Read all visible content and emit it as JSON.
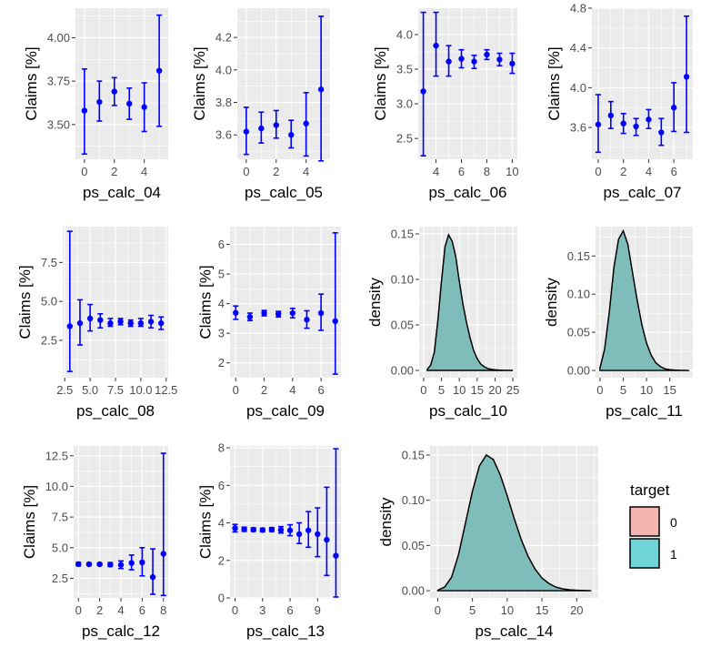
{
  "colors": {
    "panel_bg": "#ebebeb",
    "grid": "#ffffff",
    "point": "#0000ff",
    "density_fill_0": "#f8766d",
    "density_fill_1": "#00bfc4",
    "density_overlap": "#7fbdbb"
  },
  "legend": {
    "title": "target",
    "items": [
      {
        "label": "0",
        "color": "#f4b5b0"
      },
      {
        "label": "1",
        "color": "#70d5d8"
      }
    ]
  },
  "chart_data": [
    {
      "id": "ps_calc_04",
      "type": "scatter",
      "xlabel": "ps_calc_04",
      "ylabel": "Claims [%]",
      "xlim": [
        -0.6,
        5.6
      ],
      "ylim": [
        3.3,
        4.17
      ],
      "xticks": [
        0,
        2,
        4
      ],
      "xtick_labels": [
        "0",
        "2",
        "4"
      ],
      "yticks": [
        3.5,
        3.75,
        4.0
      ],
      "ytick_labels": [
        "3.50",
        "3.75",
        "4.00"
      ],
      "points": [
        {
          "x": 0,
          "y": 3.58,
          "lo": 3.33,
          "hi": 3.82
        },
        {
          "x": 1,
          "y": 3.63,
          "lo": 3.52,
          "hi": 3.75
        },
        {
          "x": 2,
          "y": 3.69,
          "lo": 3.61,
          "hi": 3.77
        },
        {
          "x": 3,
          "y": 3.62,
          "lo": 3.53,
          "hi": 3.71
        },
        {
          "x": 4,
          "y": 3.6,
          "lo": 3.46,
          "hi": 3.74
        },
        {
          "x": 5,
          "y": 3.81,
          "lo": 3.49,
          "hi": 4.13
        }
      ]
    },
    {
      "id": "ps_calc_05",
      "type": "scatter",
      "xlabel": "ps_calc_05",
      "ylabel": "Claims [%]",
      "xlim": [
        -0.6,
        5.6
      ],
      "ylim": [
        3.45,
        4.38
      ],
      "xticks": [
        0,
        2,
        4
      ],
      "xtick_labels": [
        "0",
        "2",
        "4"
      ],
      "yticks": [
        3.6,
        3.8,
        4.0,
        4.2
      ],
      "ytick_labels": [
        "3.6",
        "3.8",
        "4.0",
        "4.2"
      ],
      "points": [
        {
          "x": 0,
          "y": 3.62,
          "lo": 3.48,
          "hi": 3.77
        },
        {
          "x": 1,
          "y": 3.64,
          "lo": 3.55,
          "hi": 3.74
        },
        {
          "x": 2,
          "y": 3.66,
          "lo": 3.58,
          "hi": 3.75
        },
        {
          "x": 3,
          "y": 3.6,
          "lo": 3.52,
          "hi": 3.69
        },
        {
          "x": 4,
          "y": 3.67,
          "lo": 3.47,
          "hi": 3.86
        },
        {
          "x": 5,
          "y": 3.88,
          "lo": 3.44,
          "hi": 4.33
        }
      ]
    },
    {
      "id": "ps_calc_06",
      "type": "scatter",
      "xlabel": "ps_calc_06",
      "ylabel": "Claims [%]",
      "xlim": [
        2.6,
        10.4
      ],
      "ylim": [
        2.2,
        4.38
      ],
      "xticks": [
        4,
        6,
        8,
        10
      ],
      "xtick_labels": [
        "4",
        "6",
        "8",
        "10"
      ],
      "yticks": [
        2.5,
        3.0,
        3.5,
        4.0
      ],
      "ytick_labels": [
        "2.5",
        "3.0",
        "3.5",
        "4.0"
      ],
      "points": [
        {
          "x": 3,
          "y": 3.18,
          "lo": 2.25,
          "hi": 4.32
        },
        {
          "x": 4,
          "y": 3.84,
          "lo": 3.4,
          "hi": 4.32
        },
        {
          "x": 5,
          "y": 3.61,
          "lo": 3.4,
          "hi": 3.84
        },
        {
          "x": 6,
          "y": 3.65,
          "lo": 3.52,
          "hi": 3.78
        },
        {
          "x": 7,
          "y": 3.61,
          "lo": 3.51,
          "hi": 3.7
        },
        {
          "x": 8,
          "y": 3.71,
          "lo": 3.64,
          "hi": 3.78
        },
        {
          "x": 9,
          "y": 3.64,
          "lo": 3.55,
          "hi": 3.73
        },
        {
          "x": 10,
          "y": 3.58,
          "lo": 3.44,
          "hi": 3.73
        }
      ]
    },
    {
      "id": "ps_calc_07",
      "type": "scatter",
      "xlabel": "ps_calc_07",
      "ylabel": "Claims [%]",
      "xlim": [
        -0.5,
        7.5
      ],
      "ylim": [
        3.28,
        4.8
      ],
      "xticks": [
        0,
        2,
        4,
        6
      ],
      "xtick_labels": [
        "0",
        "2",
        "4",
        "6"
      ],
      "yticks": [
        3.6,
        4.0,
        4.4,
        4.8
      ],
      "ytick_labels": [
        "3.6",
        "4.0",
        "4.4",
        "4.8"
      ],
      "points": [
        {
          "x": 0,
          "y": 3.63,
          "lo": 3.35,
          "hi": 3.93
        },
        {
          "x": 1,
          "y": 3.72,
          "lo": 3.59,
          "hi": 3.86
        },
        {
          "x": 2,
          "y": 3.64,
          "lo": 3.54,
          "hi": 3.74
        },
        {
          "x": 3,
          "y": 3.61,
          "lo": 3.52,
          "hi": 3.69
        },
        {
          "x": 4,
          "y": 3.68,
          "lo": 3.59,
          "hi": 3.78
        },
        {
          "x": 5,
          "y": 3.55,
          "lo": 3.42,
          "hi": 3.69
        },
        {
          "x": 6,
          "y": 3.8,
          "lo": 3.56,
          "hi": 4.05
        },
        {
          "x": 7,
          "y": 4.11,
          "lo": 3.55,
          "hi": 4.72
        }
      ]
    },
    {
      "id": "ps_calc_08",
      "type": "scatter",
      "xlabel": "ps_calc_08",
      "ylabel": "Claims [%]",
      "xlim": [
        2.3,
        12.7
      ],
      "ylim": [
        0.1,
        9.8
      ],
      "xticks": [
        2.5,
        5.0,
        7.5,
        10.0,
        12.5
      ],
      "xtick_labels": [
        "2.5",
        "5.0",
        "7.5",
        "10.0",
        "12.5"
      ],
      "yticks": [
        2.5,
        5.0,
        7.5
      ],
      "ytick_labels": [
        "2.5",
        "5.0",
        "7.5"
      ],
      "points": [
        {
          "x": 3,
          "y": 3.4,
          "lo": 0.5,
          "hi": 9.5
        },
        {
          "x": 4,
          "y": 3.6,
          "lo": 2.2,
          "hi": 5.1
        },
        {
          "x": 5,
          "y": 3.9,
          "lo": 3.1,
          "hi": 4.8
        },
        {
          "x": 6,
          "y": 3.8,
          "lo": 3.3,
          "hi": 4.2
        },
        {
          "x": 7,
          "y": 3.6,
          "lo": 3.4,
          "hi": 3.9
        },
        {
          "x": 8,
          "y": 3.7,
          "lo": 3.5,
          "hi": 3.9
        },
        {
          "x": 9,
          "y": 3.6,
          "lo": 3.4,
          "hi": 3.8
        },
        {
          "x": 10,
          "y": 3.6,
          "lo": 3.4,
          "hi": 3.9
        },
        {
          "x": 11,
          "y": 3.7,
          "lo": 3.3,
          "hi": 4.1
        },
        {
          "x": 12,
          "y": 3.6,
          "lo": 3.2,
          "hi": 4.0
        }
      ]
    },
    {
      "id": "ps_calc_09",
      "type": "scatter",
      "xlabel": "ps_calc_09",
      "ylabel": "Claims [%]",
      "xlim": [
        -0.4,
        7.4
      ],
      "ylim": [
        1.5,
        6.6
      ],
      "xticks": [
        0,
        2,
        4,
        6
      ],
      "xtick_labels": [
        "0",
        "2",
        "4",
        "6"
      ],
      "yticks": [
        2,
        3,
        4,
        5,
        6
      ],
      "ytick_labels": [
        "2",
        "3",
        "4",
        "5",
        "6"
      ],
      "points": [
        {
          "x": 0,
          "y": 3.69,
          "lo": 3.47,
          "hi": 3.92
        },
        {
          "x": 1,
          "y": 3.55,
          "lo": 3.43,
          "hi": 3.68
        },
        {
          "x": 2,
          "y": 3.68,
          "lo": 3.59,
          "hi": 3.77
        },
        {
          "x": 3,
          "y": 3.65,
          "lo": 3.55,
          "hi": 3.74
        },
        {
          "x": 4,
          "y": 3.68,
          "lo": 3.52,
          "hi": 3.84
        },
        {
          "x": 5,
          "y": 3.46,
          "lo": 3.17,
          "hi": 3.76
        },
        {
          "x": 6,
          "y": 3.68,
          "lo": 3.1,
          "hi": 4.32
        },
        {
          "x": 7,
          "y": 3.41,
          "lo": 1.62,
          "hi": 6.39
        }
      ]
    },
    {
      "id": "ps_calc_10",
      "type": "area",
      "xlabel": "ps_calc_10",
      "ylabel": "density",
      "xlim": [
        -1.25,
        26.25
      ],
      "ylim": [
        -0.008,
        0.158
      ],
      "xticks": [
        0,
        5,
        10,
        15,
        20,
        25
      ],
      "xtick_labels": [
        "0",
        "5",
        "10",
        "15",
        "20",
        "25"
      ],
      "yticks": [
        0.0,
        0.05,
        0.1,
        0.15
      ],
      "ytick_labels": [
        "0.00",
        "0.05",
        "0.10",
        "0.15"
      ],
      "x": [
        1,
        2,
        3,
        4,
        5,
        6,
        7,
        8,
        9,
        10,
        11,
        12,
        13,
        14,
        15,
        16,
        17,
        18,
        19,
        20,
        21,
        22,
        23,
        24,
        25
      ],
      "y": [
        0.001,
        0.006,
        0.02,
        0.055,
        0.098,
        0.136,
        0.149,
        0.142,
        0.125,
        0.098,
        0.073,
        0.053,
        0.036,
        0.022,
        0.013,
        0.007,
        0.004,
        0.002,
        0.0012,
        0.0007,
        0.0004,
        0.0002,
        0.0001,
        5e-05,
        0.0
      ],
      "series": [
        {
          "name": "0"
        },
        {
          "name": "1"
        }
      ]
    },
    {
      "id": "ps_calc_11",
      "type": "area",
      "xlabel": "ps_calc_11",
      "ylabel": "density",
      "xlim": [
        -0.95,
        19.95
      ],
      "ylim": [
        -0.0095,
        0.1885
      ],
      "xticks": [
        0,
        5,
        10,
        15
      ],
      "xtick_labels": [
        "0",
        "5",
        "10",
        "15"
      ],
      "yticks": [
        0.0,
        0.05,
        0.1,
        0.15
      ],
      "ytick_labels": [
        "0.00",
        "0.05",
        "0.10",
        "0.15"
      ],
      "x": [
        0,
        1,
        2,
        3,
        4,
        5,
        6,
        7,
        8,
        9,
        10,
        11,
        12,
        13,
        14,
        15,
        16,
        17,
        18,
        19
      ],
      "y": [
        0.003,
        0.028,
        0.076,
        0.135,
        0.172,
        0.183,
        0.165,
        0.128,
        0.092,
        0.06,
        0.036,
        0.02,
        0.01,
        0.005,
        0.002,
        0.001,
        0.0005,
        0.0002,
        0.0001,
        0.0
      ],
      "series": [
        {
          "name": "0"
        },
        {
          "name": "1"
        }
      ]
    },
    {
      "id": "ps_calc_12",
      "type": "scatter",
      "xlabel": "ps_calc_12",
      "ylabel": "Claims [%]",
      "xlim": [
        -0.45,
        8.45
      ],
      "ylim": [
        0.9,
        13.3
      ],
      "xticks": [
        0,
        2,
        4,
        6,
        8
      ],
      "xtick_labels": [
        "0",
        "2",
        "4",
        "6",
        "8"
      ],
      "yticks": [
        2.5,
        5.0,
        7.5,
        10.0,
        12.5
      ],
      "ytick_labels": [
        "2.5",
        "5.0",
        "7.5",
        "10.0",
        "12.5"
      ],
      "points": [
        {
          "x": 0,
          "y": 3.66,
          "lo": 3.52,
          "hi": 3.8
        },
        {
          "x": 1,
          "y": 3.65,
          "lo": 3.56,
          "hi": 3.75
        },
        {
          "x": 2,
          "y": 3.65,
          "lo": 3.56,
          "hi": 3.74
        },
        {
          "x": 3,
          "y": 3.62,
          "lo": 3.47,
          "hi": 3.78
        },
        {
          "x": 4,
          "y": 3.6,
          "lo": 3.3,
          "hi": 3.92
        },
        {
          "x": 5,
          "y": 3.75,
          "lo": 3.2,
          "hi": 4.4
        },
        {
          "x": 6,
          "y": 3.8,
          "lo": 2.7,
          "hi": 5.0
        },
        {
          "x": 7,
          "y": 2.6,
          "lo": 1.2,
          "hi": 4.9
        },
        {
          "x": 8,
          "y": 4.5,
          "lo": 1.1,
          "hi": 12.7
        }
      ]
    },
    {
      "id": "ps_calc_13",
      "type": "scatter",
      "xlabel": "ps_calc_13",
      "ylabel": "Claims [%]",
      "xlim": [
        -0.55,
        11.55
      ],
      "ylim": [
        0.0,
        8.1
      ],
      "xticks": [
        0,
        3,
        6,
        9
      ],
      "xtick_labels": [
        "0",
        "3",
        "6",
        "9"
      ],
      "yticks": [
        0,
        2,
        4,
        6,
        8
      ],
      "ytick_labels": [
        "0",
        "2",
        "4",
        "6",
        "8"
      ],
      "points": [
        {
          "x": 0,
          "y": 3.72,
          "lo": 3.52,
          "hi": 3.92
        },
        {
          "x": 1,
          "y": 3.66,
          "lo": 3.55,
          "hi": 3.77
        },
        {
          "x": 2,
          "y": 3.64,
          "lo": 3.55,
          "hi": 3.73
        },
        {
          "x": 3,
          "y": 3.62,
          "lo": 3.53,
          "hi": 3.71
        },
        {
          "x": 4,
          "y": 3.64,
          "lo": 3.54,
          "hi": 3.75
        },
        {
          "x": 5,
          "y": 3.62,
          "lo": 3.46,
          "hi": 3.8
        },
        {
          "x": 6,
          "y": 3.6,
          "lo": 3.32,
          "hi": 3.9
        },
        {
          "x": 7,
          "y": 3.4,
          "lo": 2.9,
          "hi": 4.0
        },
        {
          "x": 8,
          "y": 3.6,
          "lo": 2.7,
          "hi": 4.6
        },
        {
          "x": 9,
          "y": 3.4,
          "lo": 2.2,
          "hi": 4.8
        },
        {
          "x": 10,
          "y": 3.1,
          "lo": 1.2,
          "hi": 5.9
        },
        {
          "x": 11,
          "y": 2.25,
          "lo": 0.05,
          "hi": 7.95
        }
      ]
    },
    {
      "id": "ps_calc_14",
      "type": "area",
      "xlabel": "ps_calc_14",
      "ylabel": "density",
      "xlim": [
        -1.1,
        23.1
      ],
      "ylim": [
        -0.008,
        0.16
      ],
      "xticks": [
        0,
        5,
        10,
        15,
        20
      ],
      "xtick_labels": [
        "0",
        "5",
        "10",
        "15",
        "20"
      ],
      "yticks": [
        0.0,
        0.05,
        0.1,
        0.15
      ],
      "ytick_labels": [
        "0.00",
        "0.05",
        "0.10",
        "0.15"
      ],
      "x": [
        0,
        1,
        2,
        3,
        4,
        5,
        6,
        7,
        8,
        9,
        10,
        11,
        12,
        13,
        14,
        15,
        16,
        17,
        18,
        19,
        20,
        21,
        22
      ],
      "y": [
        0.0005,
        0.004,
        0.015,
        0.04,
        0.075,
        0.11,
        0.138,
        0.15,
        0.145,
        0.128,
        0.105,
        0.08,
        0.057,
        0.038,
        0.024,
        0.014,
        0.008,
        0.004,
        0.002,
        0.001,
        0.0005,
        0.0002,
        0.0
      ],
      "series": [
        {
          "name": "0"
        },
        {
          "name": "1"
        }
      ]
    }
  ]
}
